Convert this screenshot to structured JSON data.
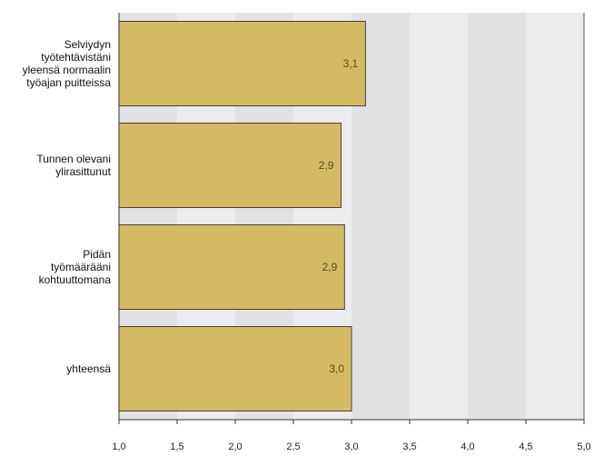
{
  "chart_data": {
    "type": "bar",
    "orientation": "horizontal",
    "categories": [
      [
        "Selviydyn",
        "työtehtävistäni",
        "yleensä normaalin",
        "työajan puitteissa"
      ],
      [
        "Tunnen olevani",
        "ylirasittunut"
      ],
      [
        "Pidän",
        "työmäärääni",
        "kohtuuttomana"
      ],
      [
        "yhteensä"
      ]
    ],
    "values": [
      3.12,
      2.91,
      2.94,
      3.0
    ],
    "value_labels": [
      "3,1",
      "2,9",
      "2,9",
      "3,0"
    ],
    "xlim": [
      1.0,
      5.0
    ],
    "ticks": [
      1.0,
      1.5,
      2.0,
      2.5,
      3.0,
      3.5,
      4.0,
      4.5,
      5.0
    ],
    "tick_labels": [
      "1,0",
      "1,5",
      "2,0",
      "2,5",
      "3,0",
      "3,5",
      "4,0",
      "4,5",
      "5,0"
    ],
    "title": "",
    "xlabel": "",
    "ylabel": "",
    "grid": "alternating vertical bands",
    "colors": {
      "bar_fill": "#d4bb63",
      "bar_stroke": "#4a4130",
      "band_dark": "#e2e2e4",
      "band_light": "#ececee"
    }
  }
}
